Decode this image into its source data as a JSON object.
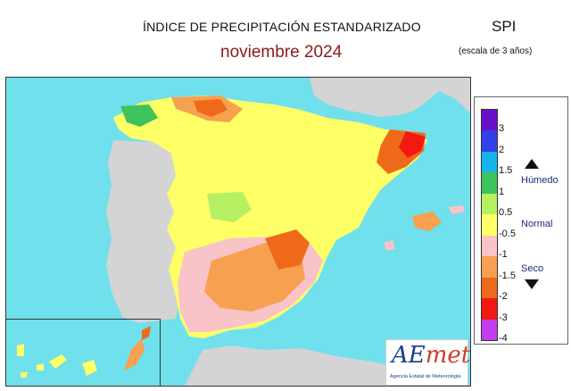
{
  "header": {
    "title": "ÍNDICE DE PRECIPITACIÓN ESTANDARIZADO",
    "subtitle": "noviembre  2024",
    "index_label": "SPI",
    "scale_label": "(escala de 3 años)"
  },
  "legend": {
    "ticks": [
      "3",
      "2",
      "1.5",
      "1",
      "0.5",
      "-0.5",
      "-1",
      "-1.5",
      "-2",
      "-3",
      "-4"
    ],
    "classes": {
      "wet": "Húmedo",
      "normal": "Normal",
      "dry": "Seco"
    },
    "colors": [
      "#6a0fc9",
      "#3340e8",
      "#14b4ec",
      "#3ec25a",
      "#b4f062",
      "#ffff66",
      "#f8c4c8",
      "#f7a050",
      "#ee6a1a",
      "#f21a10",
      "#c43cf0"
    ]
  },
  "map": {
    "sea_color": "#6fe0ec",
    "land_color": "#d4d4d4"
  },
  "logo": {
    "word_a": "AE",
    "word_b": "met",
    "org": "Agencia Estatal de Meteorología"
  }
}
